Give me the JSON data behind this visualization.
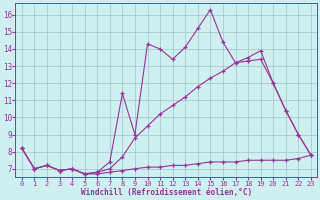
{
  "xlabel": "Windchill (Refroidissement éolien,°C)",
  "background_color": "#cff0f0",
  "grid_color": "#aacccc",
  "line_color": "#993399",
  "x_ticks": [
    0,
    1,
    2,
    3,
    4,
    5,
    6,
    7,
    8,
    9,
    10,
    11,
    12,
    13,
    14,
    15,
    16,
    17,
    18,
    19,
    20,
    21,
    22,
    23
  ],
  "y_ticks": [
    7,
    8,
    9,
    10,
    11,
    12,
    13,
    14,
    15,
    16
  ],
  "xlim": [
    -0.5,
    23.5
  ],
  "ylim": [
    6.5,
    16.7
  ],
  "series": [
    {
      "x": [
        0,
        1,
        2,
        3,
        4,
        5,
        6,
        7,
        8,
        9,
        10,
        11,
        12,
        13,
        14,
        15,
        16,
        17,
        18,
        19,
        20,
        21,
        22,
        23
      ],
      "y": [
        8.2,
        7.0,
        7.2,
        6.9,
        7.0,
        6.7,
        6.8,
        7.4,
        11.4,
        9.0,
        14.3,
        14.0,
        13.4,
        14.1,
        15.2,
        16.3,
        14.4,
        13.2,
        13.3,
        13.4,
        12.0,
        10.4,
        9.0,
        7.8
      ]
    },
    {
      "x": [
        0,
        1,
        2,
        3,
        4,
        5,
        6,
        7,
        8,
        9,
        10,
        11,
        12,
        13,
        14,
        15,
        16,
        17,
        18,
        19,
        20,
        21,
        22,
        23
      ],
      "y": [
        8.2,
        7.0,
        7.2,
        6.9,
        7.0,
        6.7,
        6.8,
        7.0,
        7.7,
        8.8,
        9.5,
        10.2,
        10.7,
        11.2,
        11.8,
        12.3,
        12.7,
        13.2,
        13.5,
        13.9,
        12.0,
        10.4,
        9.0,
        7.8
      ]
    },
    {
      "x": [
        0,
        1,
        2,
        3,
        4,
        5,
        6,
        7,
        8,
        9,
        10,
        11,
        12,
        13,
        14,
        15,
        16,
        17,
        18,
        19,
        20,
        21,
        22,
        23
      ],
      "y": [
        8.2,
        7.0,
        7.2,
        6.9,
        7.0,
        6.7,
        6.7,
        6.8,
        6.9,
        7.0,
        7.1,
        7.1,
        7.2,
        7.2,
        7.3,
        7.4,
        7.4,
        7.4,
        7.5,
        7.5,
        7.5,
        7.5,
        7.6,
        7.8
      ]
    }
  ]
}
